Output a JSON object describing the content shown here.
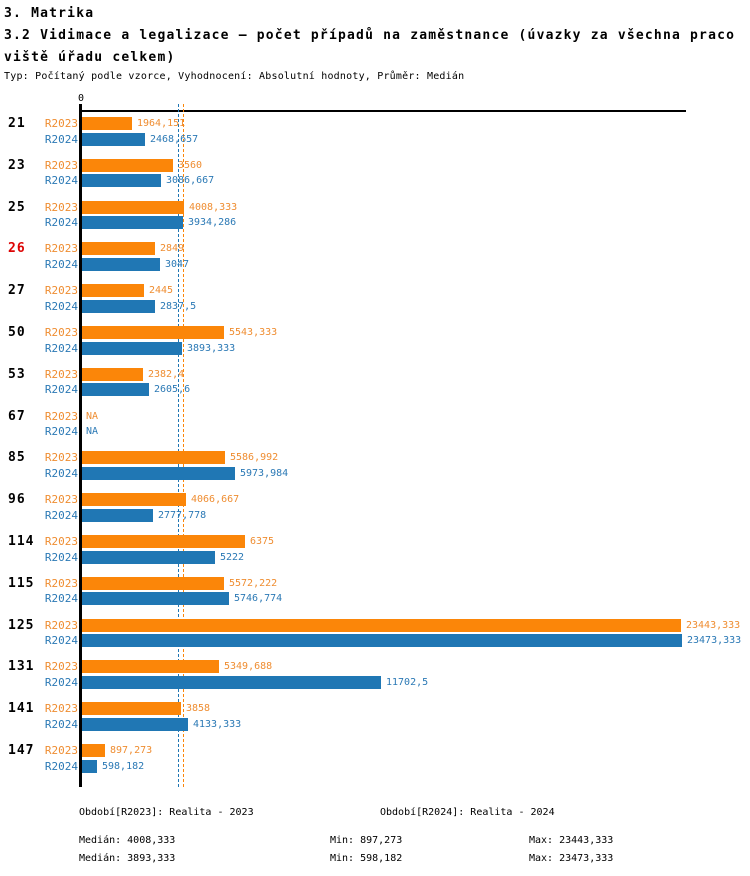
{
  "header": {
    "line1": "3. Matrika",
    "line2": "3.2 Vidimace a legalizace – počet případů na zaměstnance (úvazky za všechna praco",
    "line3": "viště úřadu celkem)",
    "subtitle": "Typ: Počítaný podle vzorce, Vyhodnocení: Absolutní hodnoty, Průměr: Medián"
  },
  "colors": {
    "bar_2023": "#fb8609",
    "bar_2024": "#2077b4",
    "text_2023": "#ef8d31",
    "text_2024": "#2b79b5",
    "highlight_category": "#dd0404",
    "category_text": "#000000",
    "axis": "#000000"
  },
  "chart_data": {
    "type": "bar",
    "orientation": "horizontal",
    "title": "3.2 Vidimace a legalizace – počet případů na zaměstnance (úvazky za všechna pracoviště úřadu celkem)",
    "xlabel": "",
    "ylabel": "",
    "xlim": [
      0,
      23700
    ],
    "grid": false,
    "axis": {
      "zero_label": "0"
    },
    "categories": [
      "21",
      "23",
      "25",
      "26",
      "27",
      "50",
      "53",
      "67",
      "85",
      "96",
      "114",
      "115",
      "125",
      "131",
      "141",
      "147"
    ],
    "highlighted_category": "26",
    "series": [
      {
        "name": "R2023",
        "values": [
          1964.151,
          3560,
          4008.333,
          2849,
          2445,
          5543.333,
          2382.4,
          null,
          5586.992,
          4066.667,
          6375,
          5572.222,
          23443.333,
          5349.688,
          3858,
          897.273
        ],
        "value_labels": [
          "1964,151",
          "3560",
          "4008,333",
          "2849",
          "2445",
          "5543,333",
          "2382,4",
          "NA",
          "5586,992",
          "4066,667",
          "6375",
          "5572,222",
          "23443,333",
          "5349,688",
          "3858",
          "897,273"
        ],
        "median": 4008.333
      },
      {
        "name": "R2024",
        "values": [
          2468.657,
          3086.667,
          3934.286,
          3047,
          2837.5,
          3893.333,
          2605.6,
          null,
          5973.984,
          2777.778,
          5222,
          5746.774,
          23473.333,
          11702.5,
          4133.333,
          598.182
        ],
        "value_labels": [
          "2468,657",
          "3086,667",
          "3934,286",
          "3047",
          "2837,5",
          "3893,333",
          "2605,6",
          "NA",
          "5973,984",
          "2777,778",
          "5222",
          "5746,774",
          "23473,333",
          "11702,5",
          "4133,333",
          "598,182"
        ],
        "median": 3893.333
      }
    ]
  },
  "footer": {
    "r2023": {
      "period": "Období[R2023]: Realita - 2023",
      "median": "Medián: 4008,333",
      "min": "Min: 897,273",
      "max": "Max: 23443,333"
    },
    "r2024": {
      "period": "Období[R2024]: Realita - 2024",
      "median": "Medián: 3893,333",
      "min": "Min: 598,182",
      "max": "Max: 23473,333"
    }
  }
}
